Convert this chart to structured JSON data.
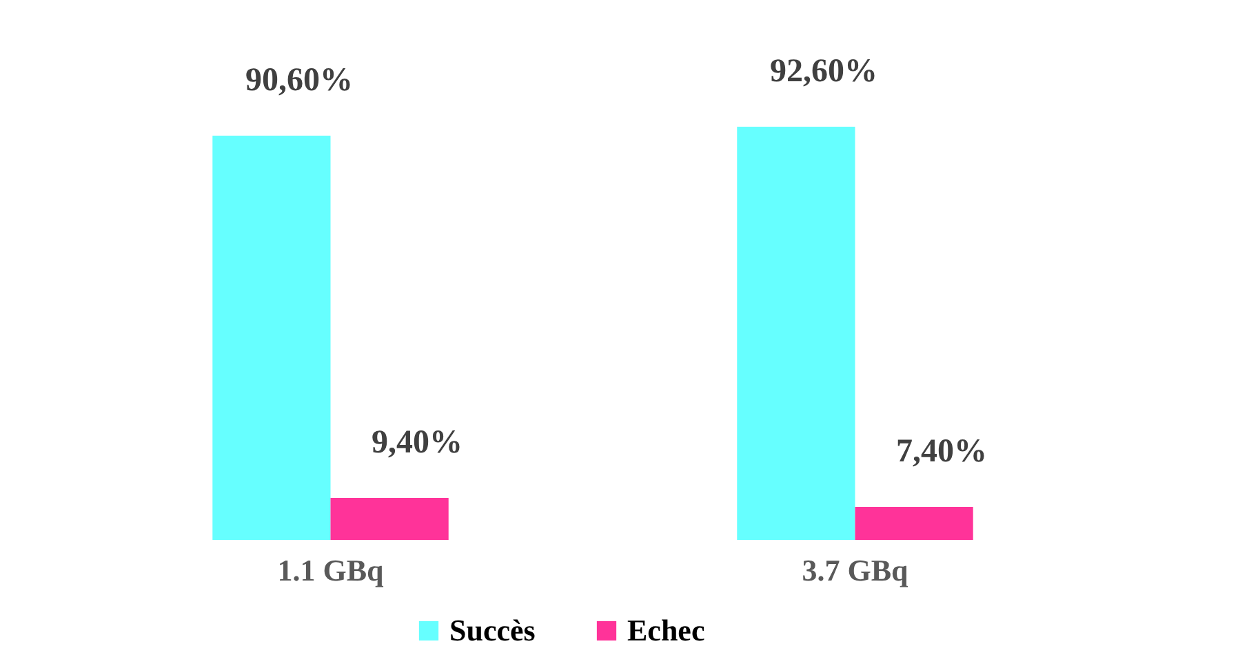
{
  "chart_data": {
    "type": "bar",
    "categories": [
      "1.1 GBq",
      "3.7 GBq"
    ],
    "series": [
      {
        "name": "Succès",
        "color": "#66ffff",
        "values": [
          90.6,
          92.6
        ],
        "value_labels": [
          "90,60%",
          "92,60%"
        ]
      },
      {
        "name": "Echec",
        "color": "#ff3399",
        "values": [
          9.4,
          7.4
        ],
        "value_labels": [
          "9,40%",
          "7,40%"
        ]
      }
    ],
    "legend": "bottom"
  }
}
